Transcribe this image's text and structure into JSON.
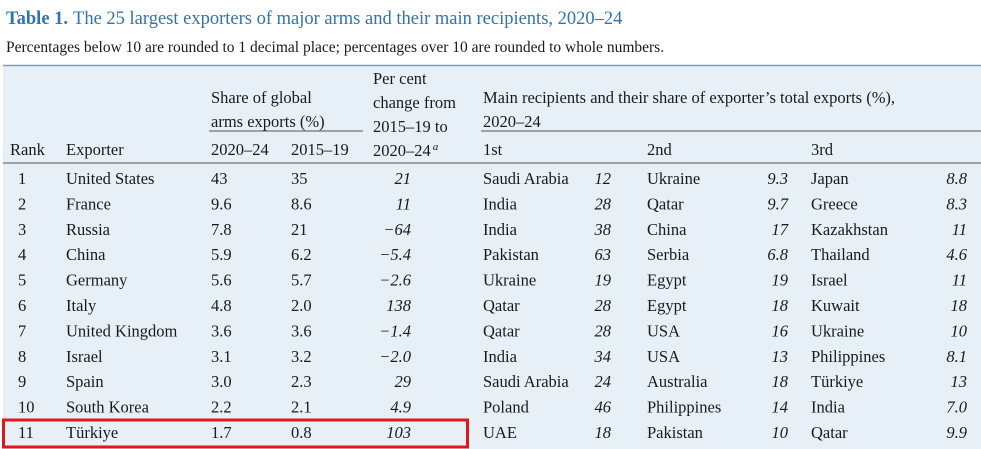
{
  "title": {
    "label": "Table 1.",
    "text": "The 25 largest exporters of major arms and their main recipients, 2020–24"
  },
  "subtitle": "Percentages below 10 are rounded to 1 decimal place; percentages over 10 are rounded to whole numbers.",
  "header": {
    "share": [
      "Share of global",
      "arms exports (%)"
    ],
    "change": [
      "Per cent",
      "change from",
      "2015–19 to",
      "2020–24"
    ],
    "change_note": "a",
    "recipients": [
      "Main recipients and their share of exporter’s total exports (%),",
      "2020–24"
    ],
    "columns": [
      "Rank",
      "Exporter",
      "2020–24",
      "2015–19",
      "1st",
      "2nd",
      "3rd"
    ]
  },
  "table": {
    "rows": [
      [
        "1",
        "United States",
        "43",
        "35",
        "21",
        "Saudi Arabia",
        "12",
        "Ukraine",
        "9.3",
        "Japan",
        "8.8"
      ],
      [
        "2",
        "France",
        "9.6",
        "8.6",
        "11",
        "India",
        "28",
        "Qatar",
        "9.7",
        "Greece",
        "8.3"
      ],
      [
        "3",
        "Russia",
        "7.8",
        "21",
        "−64",
        "India",
        "38",
        "China",
        "17",
        "Kazakhstan",
        "11"
      ],
      [
        "4",
        "China",
        "5.9",
        "6.2",
        "−5.4",
        "Pakistan",
        "63",
        "Serbia",
        "6.8",
        "Thailand",
        "4.6"
      ],
      [
        "5",
        "Germany",
        "5.6",
        "5.7",
        "−2.6",
        "Ukraine",
        "19",
        "Egypt",
        "19",
        "Israel",
        "11"
      ],
      [
        "6",
        "Italy",
        "4.8",
        "2.0",
        "138",
        "Qatar",
        "28",
        "Egypt",
        "18",
        "Kuwait",
        "18"
      ],
      [
        "7",
        "United Kingdom",
        "3.6",
        "3.6",
        "−1.4",
        "Qatar",
        "28",
        "USA",
        "16",
        "Ukraine",
        "10"
      ],
      [
        "8",
        "Israel",
        "3.1",
        "3.2",
        "−2.0",
        "India",
        "34",
        "USA",
        "13",
        "Philippines",
        "8.1"
      ],
      [
        "9",
        "Spain",
        "3.0",
        "2.3",
        "29",
        "Saudi Arabia",
        "24",
        "Australia",
        "18",
        "Türkiye",
        "13"
      ],
      [
        "10",
        "South Korea",
        "2.2",
        "2.1",
        "4.9",
        "Poland",
        "46",
        "Philippines",
        "14",
        "India",
        "7.0"
      ],
      [
        "11",
        "Türkiye",
        "1.7",
        "0.8",
        "103",
        "UAE",
        "18",
        "Pakistan",
        "10",
        "Qatar",
        "9.9"
      ]
    ]
  }
}
